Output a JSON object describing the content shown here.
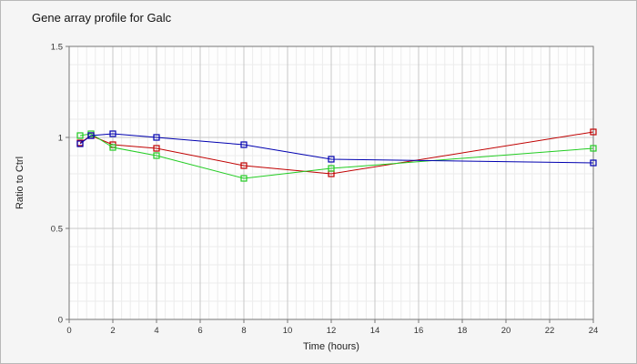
{
  "chart_data": {
    "type": "line",
    "title": "Gene array profile for Galc",
    "xlabel": "Time (hours)",
    "ylabel": "Ratio to Ctrl",
    "xlim": [
      0,
      24
    ],
    "ylim": [
      0,
      1.5
    ],
    "xticks": [
      0,
      2,
      4,
      6,
      8,
      10,
      12,
      14,
      16,
      18,
      20,
      22,
      24
    ],
    "xtick_labels": [
      "0",
      "2",
      "4",
      "6",
      "8",
      "10",
      "12",
      "14",
      "16",
      "18",
      "20",
      "22",
      "24"
    ],
    "yticks": [
      0,
      0.5,
      1,
      1.5
    ],
    "ytick_labels": [
      "0",
      "0.5",
      "1",
      "1.5"
    ],
    "grid": true,
    "marker": "open-square",
    "series": [
      {
        "color": "#c00000",
        "x": [
          0.5,
          1,
          2,
          4,
          8,
          12,
          24
        ],
        "y": [
          0.97,
          1.01,
          0.96,
          0.94,
          0.845,
          0.8,
          1.03
        ]
      },
      {
        "color": "#22cc22",
        "x": [
          0.5,
          1,
          2,
          4,
          8,
          12,
          24
        ],
        "y": [
          1.01,
          1.02,
          0.945,
          0.9,
          0.775,
          0.83,
          0.94
        ]
      },
      {
        "color": "#0000b0",
        "x": [
          0.5,
          1,
          2,
          4,
          8,
          12,
          24
        ],
        "y": [
          0.965,
          1.01,
          1.02,
          1.0,
          0.96,
          0.88,
          0.86
        ]
      }
    ]
  }
}
